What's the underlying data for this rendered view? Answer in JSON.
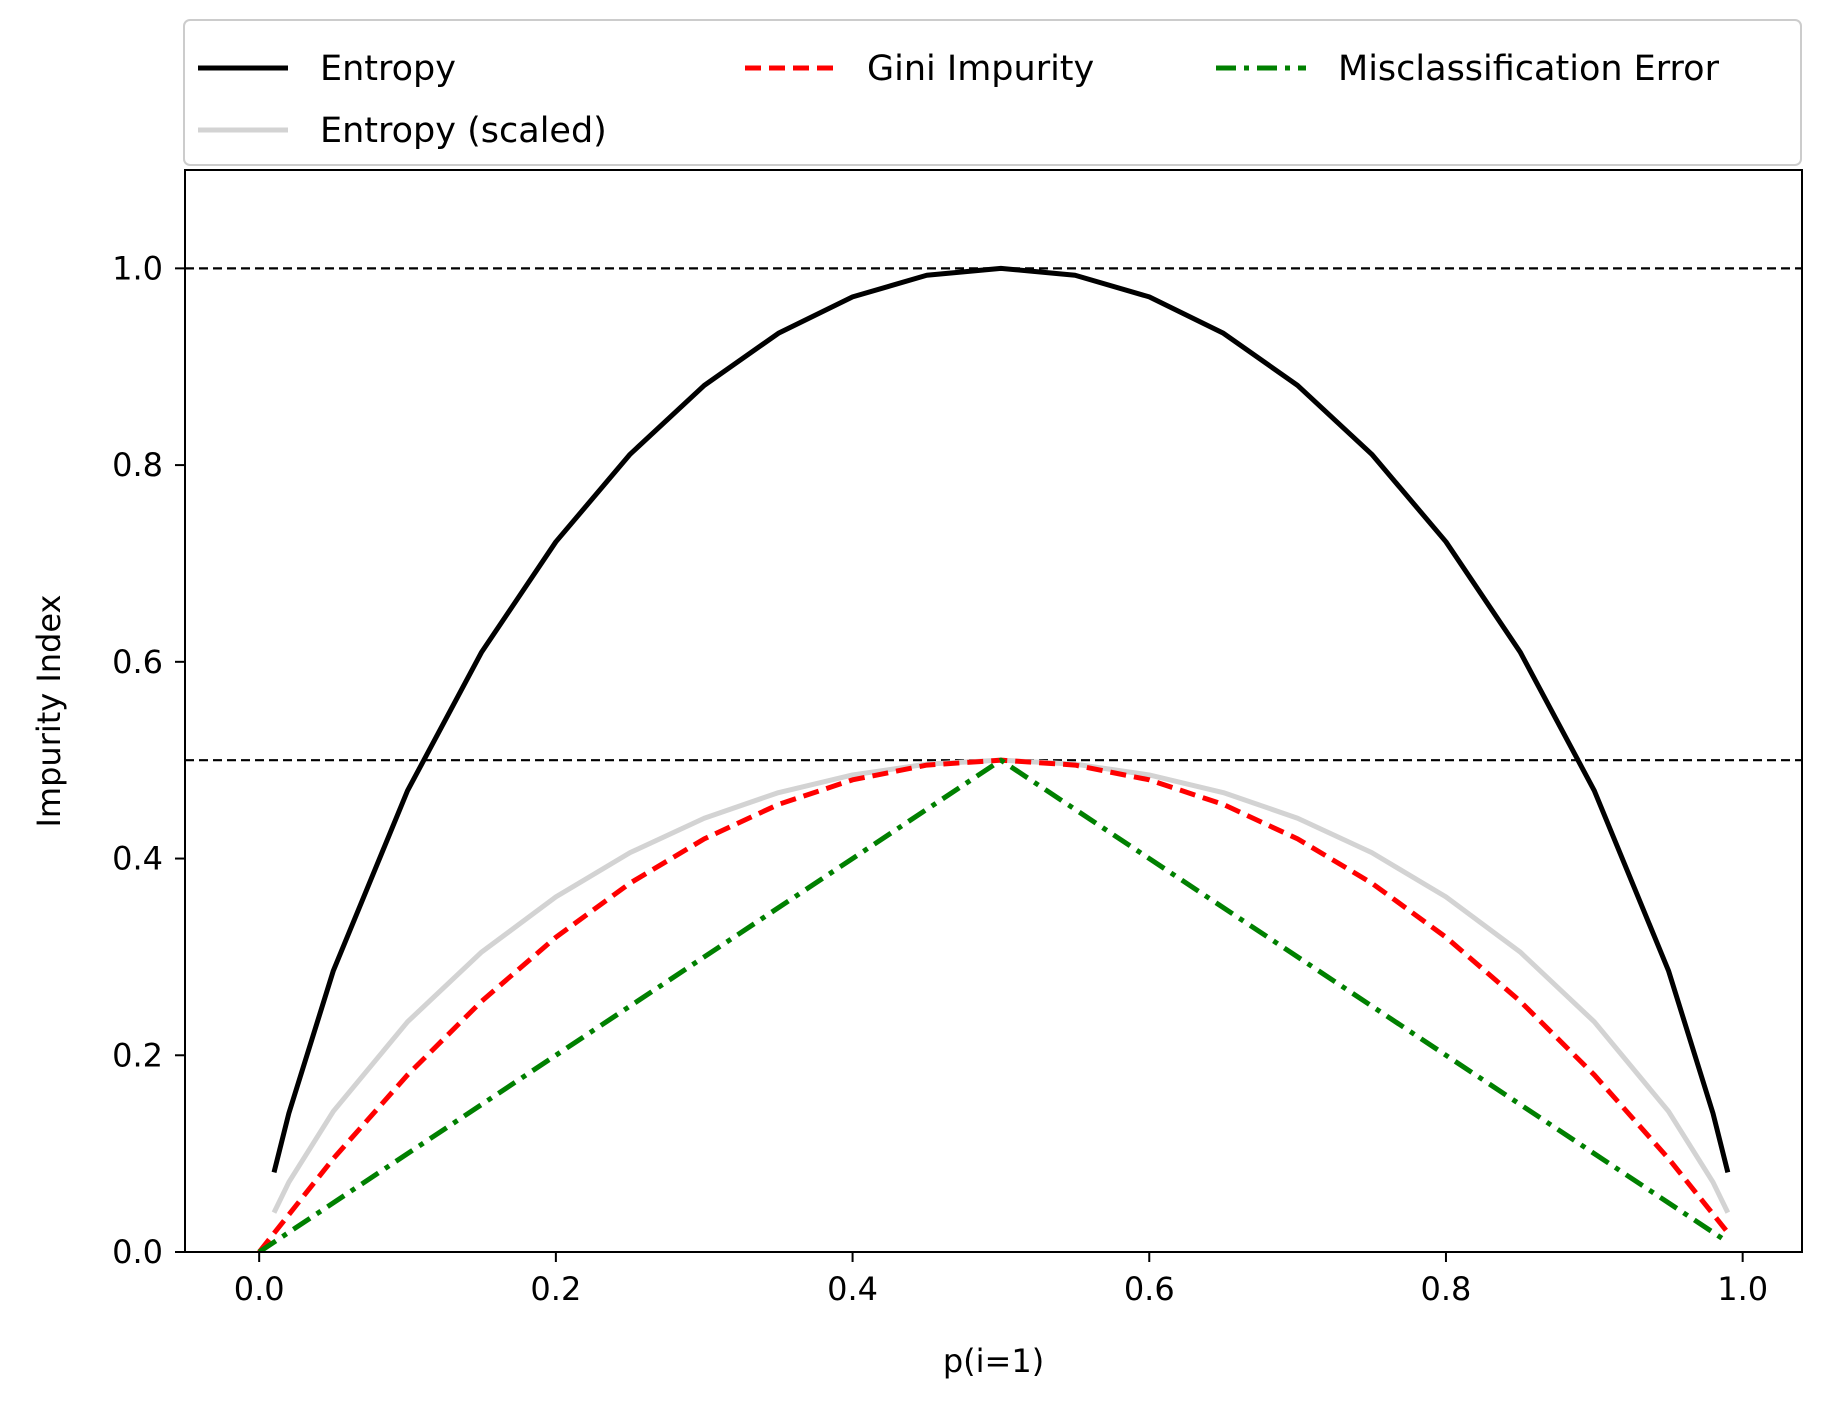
{
  "chart_data": {
    "type": "line",
    "title": "",
    "xlabel": "p(i=1)",
    "ylabel": "Impurity Index",
    "xlim": [
      -0.05,
      1.04
    ],
    "ylim": [
      0.0,
      1.1
    ],
    "xticks": [
      "0.0",
      "0.2",
      "0.4",
      "0.6",
      "0.8",
      "1.0"
    ],
    "yticks": [
      "0.0",
      "0.2",
      "0.4",
      "0.6",
      "0.8",
      "1.0"
    ],
    "grid": false,
    "legend_position": "top (above plot, 3 columns)",
    "reference_lines": [
      {
        "y": 0.5,
        "style": "dashed",
        "color": "#000000"
      },
      {
        "y": 1.0,
        "style": "dashed",
        "color": "#000000"
      }
    ],
    "series": [
      {
        "name": "Entropy",
        "color": "#000000",
        "style": "solid",
        "x": [
          0.01,
          0.02,
          0.05,
          0.1,
          0.15,
          0.2,
          0.25,
          0.3,
          0.35,
          0.4,
          0.45,
          0.5,
          0.55,
          0.6,
          0.65,
          0.7,
          0.75,
          0.8,
          0.85,
          0.9,
          0.95,
          0.98,
          0.99
        ],
        "y": [
          0.081,
          0.141,
          0.286,
          0.469,
          0.61,
          0.722,
          0.811,
          0.881,
          0.934,
          0.971,
          0.993,
          1.0,
          0.993,
          0.971,
          0.934,
          0.881,
          0.811,
          0.722,
          0.61,
          0.469,
          0.286,
          0.141,
          0.081
        ]
      },
      {
        "name": "Entropy (scaled)",
        "color": "#d3d3d3",
        "style": "solid",
        "x": [
          0.01,
          0.02,
          0.05,
          0.1,
          0.15,
          0.2,
          0.25,
          0.3,
          0.35,
          0.4,
          0.45,
          0.5,
          0.55,
          0.6,
          0.65,
          0.7,
          0.75,
          0.8,
          0.85,
          0.9,
          0.95,
          0.98,
          0.99
        ],
        "y": [
          0.04,
          0.071,
          0.143,
          0.234,
          0.305,
          0.361,
          0.406,
          0.441,
          0.467,
          0.485,
          0.496,
          0.5,
          0.496,
          0.485,
          0.467,
          0.441,
          0.406,
          0.361,
          0.305,
          0.234,
          0.143,
          0.071,
          0.04
        ]
      },
      {
        "name": "Gini Impurity",
        "color": "#ff0000",
        "style": "dashed",
        "x": [
          0.0,
          0.05,
          0.1,
          0.15,
          0.2,
          0.25,
          0.3,
          0.35,
          0.4,
          0.45,
          0.5,
          0.55,
          0.6,
          0.65,
          0.7,
          0.75,
          0.8,
          0.85,
          0.9,
          0.95,
          0.99
        ],
        "y": [
          0.0,
          0.095,
          0.18,
          0.255,
          0.32,
          0.375,
          0.42,
          0.455,
          0.48,
          0.495,
          0.5,
          0.495,
          0.48,
          0.455,
          0.42,
          0.375,
          0.32,
          0.255,
          0.18,
          0.095,
          0.0198
        ]
      },
      {
        "name": "Misclassification Error",
        "color": "#008000",
        "style": "dashdot",
        "x": [
          0.0,
          0.5,
          0.99
        ],
        "y": [
          0.0,
          0.5,
          0.01
        ]
      }
    ]
  }
}
